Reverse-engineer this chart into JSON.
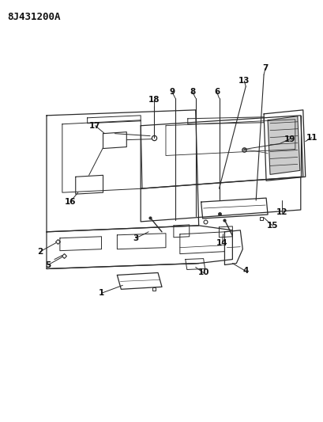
{
  "title": "8J431200A",
  "background_color": "#ffffff",
  "fig_width": 4.09,
  "fig_height": 5.33,
  "dpi": 100,
  "line_color": "#2a2a2a",
  "text_color": "#111111"
}
